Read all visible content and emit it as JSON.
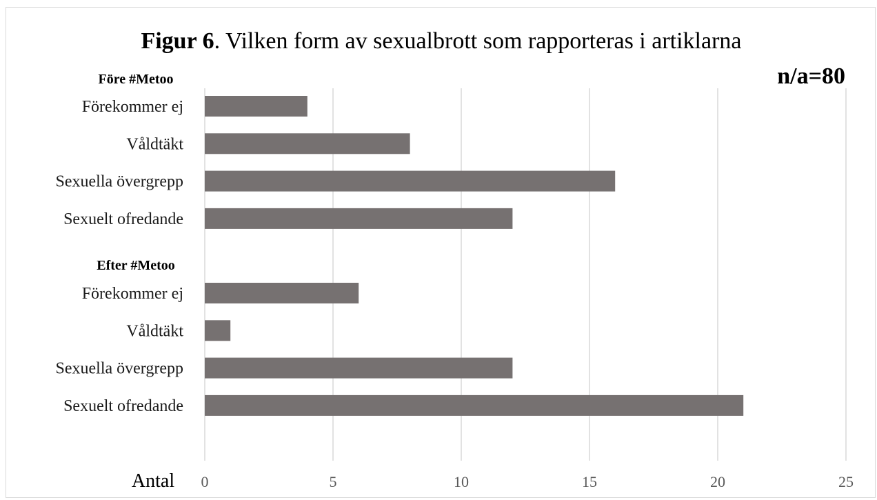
{
  "chart_data": {
    "type": "bar",
    "orientation": "horizontal",
    "title": {
      "bold": "Figur 6",
      "rest": ". Vilken form av sexualbrott som rapporteras  i artiklarna"
    },
    "note": "n/a=80",
    "xlabel": "Antal",
    "xlim": [
      0,
      25
    ],
    "xticks": [
      0,
      5,
      10,
      15,
      20,
      25
    ],
    "grid": "vertical",
    "bar_color": "#767171",
    "groups": [
      {
        "label": "Före #Metoo",
        "categories": [
          "Förekommer ej",
          "Våldtäkt",
          "Sexuella övergrepp",
          "Sexuelt ofredande"
        ],
        "values": [
          4,
          8,
          16,
          12
        ]
      },
      {
        "label": "Efter #Metoo",
        "categories": [
          "Förekommer ej",
          "Våldtäkt",
          "Sexuella övergrepp",
          "Sexuelt ofredande"
        ],
        "values": [
          6,
          1,
          12,
          21
        ]
      }
    ]
  }
}
